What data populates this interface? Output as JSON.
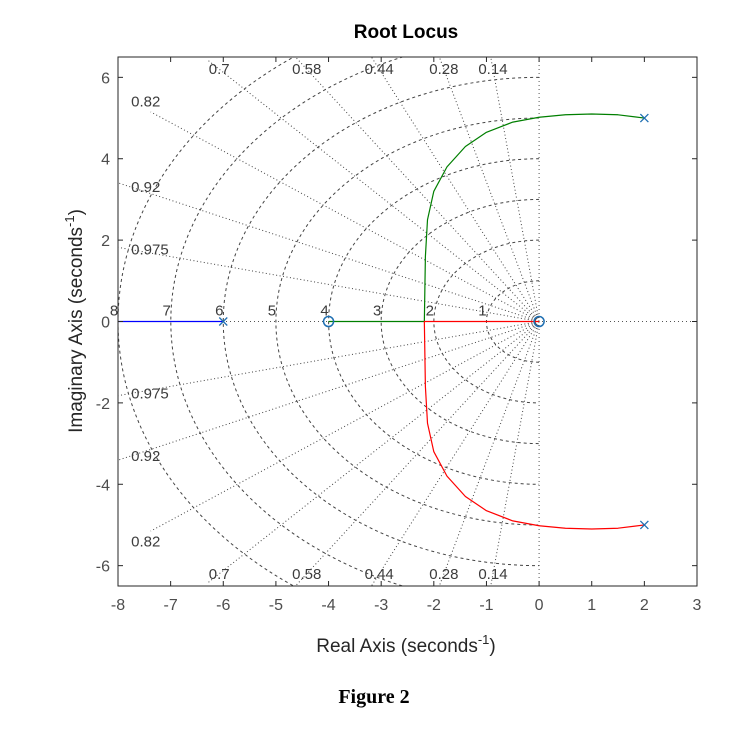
{
  "figure": {
    "caption": "Figure 2"
  },
  "chart_data": {
    "type": "root_locus",
    "title": "Root Locus",
    "xlabel": "Real Axis (seconds",
    "ylabel": "Imaginary Axis (seconds",
    "label_exponent": "-1",
    "xlim": [
      -8,
      3
    ],
    "ylim": [
      -6.5,
      6.5
    ],
    "xticks": [
      -8,
      -7,
      -6,
      -5,
      -4,
      -3,
      -2,
      -1,
      0,
      1,
      2,
      3
    ],
    "yticks": [
      -6,
      -4,
      -2,
      0,
      2,
      4,
      6
    ],
    "grid": true,
    "damping_lines": [
      {
        "label": "0.14",
        "zeta": 0.14
      },
      {
        "label": "0.28",
        "zeta": 0.28
      },
      {
        "label": "0.44",
        "zeta": 0.44
      },
      {
        "label": "0.58",
        "zeta": 0.58
      },
      {
        "label": "0.7",
        "zeta": 0.7
      },
      {
        "label": "0.82",
        "zeta": 0.82
      },
      {
        "label": "0.92",
        "zeta": 0.92
      },
      {
        "label": "0.975",
        "zeta": 0.975
      }
    ],
    "frequency_circles": [
      {
        "label": "1",
        "wn": 1
      },
      {
        "label": "2",
        "wn": 2
      },
      {
        "label": "3",
        "wn": 3
      },
      {
        "label": "4",
        "wn": 4
      },
      {
        "label": "5",
        "wn": 5
      },
      {
        "label": "6",
        "wn": 6
      },
      {
        "label": "7",
        "wn": 7
      },
      {
        "label": "8",
        "wn": 8
      }
    ],
    "poles": [
      {
        "x": 2,
        "y": 5
      },
      {
        "x": 2,
        "y": -5
      },
      {
        "x": -6,
        "y": 0
      }
    ],
    "zeros": [
      {
        "x": 0,
        "y": 0
      },
      {
        "x": -4,
        "y": 0
      }
    ],
    "series": [
      {
        "color": "#007f00",
        "points": [
          [
            2,
            5
          ],
          [
            1.5,
            5.08
          ],
          [
            1,
            5.1
          ],
          [
            0.5,
            5.08
          ],
          [
            0,
            5.02
          ],
          [
            -0.5,
            4.9
          ],
          [
            -1,
            4.65
          ],
          [
            -1.4,
            4.3
          ],
          [
            -1.75,
            3.8
          ],
          [
            -2,
            3.2
          ],
          [
            -2.12,
            2.5
          ],
          [
            -2.16,
            1.6
          ],
          [
            -2.17,
            0.8
          ],
          [
            -2.18,
            0
          ],
          [
            -2.5,
            0
          ],
          [
            -3,
            0
          ],
          [
            -3.5,
            0
          ],
          [
            -4,
            0
          ]
        ]
      },
      {
        "color": "#ff0000",
        "points": [
          [
            2,
            -5
          ],
          [
            1.5,
            -5.08
          ],
          [
            1,
            -5.1
          ],
          [
            0.5,
            -5.08
          ],
          [
            0,
            -5.02
          ],
          [
            -0.5,
            -4.9
          ],
          [
            -1,
            -4.65
          ],
          [
            -1.4,
            -4.3
          ],
          [
            -1.75,
            -3.8
          ],
          [
            -2,
            -3.2
          ],
          [
            -2.12,
            -2.5
          ],
          [
            -2.16,
            -1.6
          ],
          [
            -2.17,
            -0.8
          ],
          [
            -2.18,
            0
          ],
          [
            -1.5,
            0
          ],
          [
            -1,
            0
          ],
          [
            -0.5,
            0
          ],
          [
            0,
            0
          ]
        ]
      },
      {
        "color": "#0000ff",
        "points": [
          [
            -6,
            0
          ],
          [
            -6.5,
            0
          ],
          [
            -7,
            0
          ],
          [
            -7.5,
            0
          ],
          [
            -8,
            0
          ]
        ]
      }
    ]
  }
}
